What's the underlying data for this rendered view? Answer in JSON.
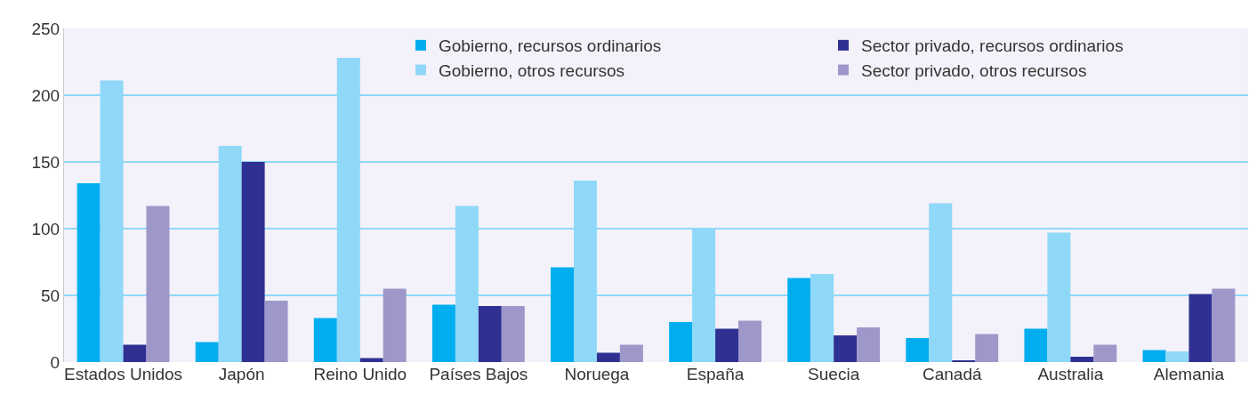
{
  "chart_data": {
    "type": "bar",
    "categories": [
      "Estados Unidos",
      "Japón",
      "Reino Unido",
      "Países Bajos",
      "Noruega",
      "España",
      "Suecia",
      "Canadá",
      "Australia",
      "Alemania"
    ],
    "series": [
      {
        "name": "Gobierno, recursos ordinarios",
        "color": "#00aeef",
        "values": [
          134,
          15,
          33,
          43,
          71,
          30,
          63,
          18,
          25,
          9
        ]
      },
      {
        "name": "Gobierno, otros recursos",
        "color": "#8fd8f8",
        "values": [
          211,
          162,
          228,
          117,
          136,
          100,
          66,
          119,
          97,
          8
        ]
      },
      {
        "name": "Sector privado, recursos ordinarios",
        "color": "#2e3192",
        "values": [
          13,
          150,
          3,
          42,
          7,
          25,
          20,
          1,
          4,
          51
        ]
      },
      {
        "name": "Sector privado, otros recursos",
        "color": "#9e97c9",
        "values": [
          117,
          46,
          55,
          42,
          13,
          31,
          26,
          21,
          13,
          55
        ]
      }
    ],
    "ylim": [
      0,
      250
    ],
    "yticks": [
      0,
      50,
      100,
      150,
      200,
      250
    ],
    "grid": "y",
    "legend": "top right"
  }
}
